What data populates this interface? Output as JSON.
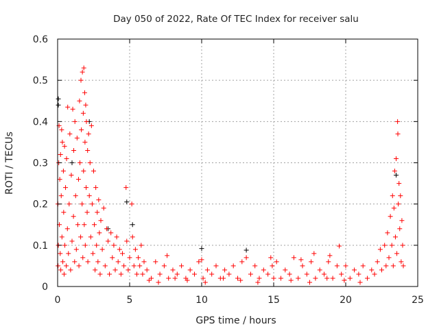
{
  "chart_data": {
    "type": "scatter",
    "title": "Day 050 of 2022, Rate Of TEC Index for receiver salu",
    "xlabel": "GPS time / hours",
    "ylabel": "ROTI / TECUs",
    "xlim": [
      0,
      25
    ],
    "ylim": [
      0,
      0.6
    ],
    "xticks": [
      "0",
      "5",
      "10",
      "15",
      "20",
      "25"
    ],
    "xtick_values": [
      0,
      5,
      10,
      15,
      20,
      25
    ],
    "yticks": [
      "0",
      "0.1",
      "0.2",
      "0.3",
      "0.4",
      "0.5",
      "0.6"
    ],
    "ytick_values": [
      0,
      0.1,
      0.2,
      0.3,
      0.4,
      0.5,
      0.6
    ],
    "grid": true,
    "marker": "plus",
    "series": [
      {
        "name": "secondary",
        "color": "#000000",
        "points": [
          [
            0.05,
            0.455
          ],
          [
            0.05,
            0.44
          ],
          [
            1.0,
            0.3
          ],
          [
            2.2,
            0.4
          ],
          [
            3.5,
            0.14
          ],
          [
            4.8,
            0.205
          ],
          [
            5.2,
            0.15
          ],
          [
            10.0,
            0.092
          ],
          [
            13.1,
            0.088
          ],
          [
            23.5,
            0.27
          ]
        ]
      },
      {
        "name": "primary",
        "color": "#ff0000",
        "points": [
          [
            0.02,
            0.2
          ],
          [
            0.03,
            0.05
          ],
          [
            0.05,
            0.1
          ],
          [
            0.08,
            0.3
          ],
          [
            0.1,
            0.39
          ],
          [
            0.12,
            0.15
          ],
          [
            0.15,
            0.26
          ],
          [
            0.18,
            0.08
          ],
          [
            0.2,
            0.32
          ],
          [
            0.22,
            0.04
          ],
          [
            0.25,
            0.22
          ],
          [
            0.28,
            0.38
          ],
          [
            0.3,
            0.12
          ],
          [
            0.33,
            0.35
          ],
          [
            0.36,
            0.06
          ],
          [
            0.4,
            0.28
          ],
          [
            0.42,
            0.18
          ],
          [
            0.45,
            0.03
          ],
          [
            0.48,
            0.34
          ],
          [
            0.5,
            0.1
          ],
          [
            0.55,
            0.24
          ],
          [
            0.6,
            0.05
          ],
          [
            0.62,
            0.31
          ],
          [
            0.68,
            0.14
          ],
          [
            0.7,
            0.435
          ],
          [
            0.75,
            0.08
          ],
          [
            0.8,
            0.2
          ],
          [
            0.85,
            0.37
          ],
          [
            0.9,
            0.04
          ],
          [
            0.95,
            0.27
          ],
          [
            1.0,
            0.11
          ],
          [
            1.05,
            0.43
          ],
          [
            1.1,
            0.17
          ],
          [
            1.12,
            0.33
          ],
          [
            1.18,
            0.06
          ],
          [
            1.2,
            0.4
          ],
          [
            1.25,
            0.22
          ],
          [
            1.3,
            0.09
          ],
          [
            1.35,
            0.36
          ],
          [
            1.4,
            0.15
          ],
          [
            1.45,
            0.26
          ],
          [
            1.48,
            0.05
          ],
          [
            1.52,
            0.45
          ],
          [
            1.55,
            0.3
          ],
          [
            1.6,
            0.12
          ],
          [
            1.62,
            0.5
          ],
          [
            1.65,
            0.38
          ],
          [
            1.7,
            0.2
          ],
          [
            1.72,
            0.52
          ],
          [
            1.75,
            0.07
          ],
          [
            1.78,
            0.42
          ],
          [
            1.8,
            0.28
          ],
          [
            1.82,
            0.53
          ],
          [
            1.85,
            0.15
          ],
          [
            1.88,
            0.47
          ],
          [
            1.9,
            0.35
          ],
          [
            1.92,
            0.1
          ],
          [
            1.95,
            0.44
          ],
          [
            1.98,
            0.24
          ],
          [
            2.0,
            0.4
          ],
          [
            2.05,
            0.18
          ],
          [
            2.08,
            0.33
          ],
          [
            2.1,
            0.06
          ],
          [
            2.15,
            0.37
          ],
          [
            2.2,
            0.22
          ],
          [
            2.25,
            0.3
          ],
          [
            2.3,
            0.12
          ],
          [
            2.35,
            0.39
          ],
          [
            2.4,
            0.2
          ],
          [
            2.45,
            0.08
          ],
          [
            2.5,
            0.28
          ],
          [
            2.55,
            0.15
          ],
          [
            2.6,
            0.04
          ],
          [
            2.65,
            0.24
          ],
          [
            2.7,
            0.1
          ],
          [
            2.75,
            0.18
          ],
          [
            2.8,
            0.06
          ],
          [
            2.85,
            0.21
          ],
          [
            2.9,
            0.13
          ],
          [
            2.95,
            0.03
          ],
          [
            3.0,
            0.16
          ],
          [
            3.1,
            0.09
          ],
          [
            3.2,
            0.19
          ],
          [
            3.3,
            0.05
          ],
          [
            3.4,
            0.14
          ],
          [
            3.5,
            0.11
          ],
          [
            3.6,
            0.03
          ],
          [
            3.7,
            0.13
          ],
          [
            3.8,
            0.07
          ],
          [
            3.9,
            0.1
          ],
          [
            4.0,
            0.04
          ],
          [
            4.1,
            0.12
          ],
          [
            4.2,
            0.06
          ],
          [
            4.3,
            0.09
          ],
          [
            4.4,
            0.03
          ],
          [
            4.5,
            0.08
          ],
          [
            4.6,
            0.05
          ],
          [
            4.75,
            0.24
          ],
          [
            4.8,
            0.11
          ],
          [
            4.9,
            0.04
          ],
          [
            5.0,
            0.07
          ],
          [
            5.15,
            0.2
          ],
          [
            5.2,
            0.12
          ],
          [
            5.3,
            0.05
          ],
          [
            5.4,
            0.09
          ],
          [
            5.5,
            0.03
          ],
          [
            5.6,
            0.07
          ],
          [
            5.7,
            0.05
          ],
          [
            5.8,
            0.1
          ],
          [
            5.9,
            0.03
          ],
          [
            6.0,
            0.06
          ],
          [
            6.2,
            0.04
          ],
          [
            6.5,
            0.02
          ],
          [
            6.8,
            0.06
          ],
          [
            7.1,
            0.03
          ],
          [
            7.4,
            0.05
          ],
          [
            7.7,
            0.02
          ],
          [
            8.0,
            0.04
          ],
          [
            8.3,
            0.03
          ],
          [
            8.6,
            0.05
          ],
          [
            8.9,
            0.02
          ],
          [
            9.2,
            0.04
          ],
          [
            9.5,
            0.03
          ],
          [
            9.8,
            0.06
          ],
          [
            10.1,
            0.02
          ],
          [
            10.4,
            0.04
          ],
          [
            10.7,
            0.03
          ],
          [
            11.0,
            0.05
          ],
          [
            11.3,
            0.02
          ],
          [
            11.6,
            0.04
          ],
          [
            11.9,
            0.03
          ],
          [
            12.2,
            0.05
          ],
          [
            12.5,
            0.02
          ],
          [
            12.8,
            0.06
          ],
          [
            13.1,
            0.07
          ],
          [
            13.4,
            0.03
          ],
          [
            13.7,
            0.05
          ],
          [
            14.0,
            0.02
          ],
          [
            14.3,
            0.04
          ],
          [
            14.6,
            0.03
          ],
          [
            14.9,
            0.05
          ],
          [
            15.2,
            0.06
          ],
          [
            15.5,
            0.02
          ],
          [
            15.8,
            0.04
          ],
          [
            16.1,
            0.03
          ],
          [
            16.4,
            0.07
          ],
          [
            16.7,
            0.02
          ],
          [
            17.0,
            0.05
          ],
          [
            17.3,
            0.03
          ],
          [
            17.6,
            0.06
          ],
          [
            17.9,
            0.02
          ],
          [
            18.2,
            0.04
          ],
          [
            18.5,
            0.03
          ],
          [
            18.8,
            0.06
          ],
          [
            19.1,
            0.02
          ],
          [
            19.4,
            0.05
          ],
          [
            19.55,
            0.098
          ],
          [
            19.7,
            0.03
          ],
          [
            20.0,
            0.05
          ],
          [
            20.3,
            0.02
          ],
          [
            20.6,
            0.04
          ],
          [
            20.9,
            0.03
          ],
          [
            21.2,
            0.05
          ],
          [
            21.5,
            0.02
          ],
          [
            21.8,
            0.04
          ],
          [
            6.35,
            0.015
          ],
          [
            7.0,
            0.01
          ],
          [
            8.15,
            0.02
          ],
          [
            9.0,
            0.015
          ],
          [
            10.25,
            0.01
          ],
          [
            11.5,
            0.02
          ],
          [
            12.7,
            0.015
          ],
          [
            13.9,
            0.01
          ],
          [
            15.0,
            0.02
          ],
          [
            16.2,
            0.015
          ],
          [
            17.5,
            0.01
          ],
          [
            18.7,
            0.02
          ],
          [
            19.9,
            0.015
          ],
          [
            21.0,
            0.01
          ],
          [
            7.6,
            0.075
          ],
          [
            10.0,
            0.065
          ],
          [
            14.8,
            0.07
          ],
          [
            17.8,
            0.08
          ],
          [
            18.9,
            0.075
          ],
          [
            16.9,
            0.065
          ],
          [
            22.0,
            0.03
          ],
          [
            22.2,
            0.06
          ],
          [
            22.4,
            0.09
          ],
          [
            22.5,
            0.04
          ],
          [
            22.7,
            0.1
          ],
          [
            22.8,
            0.05
          ],
          [
            22.9,
            0.13
          ],
          [
            23.0,
            0.07
          ],
          [
            23.1,
            0.17
          ],
          [
            23.2,
            0.1
          ],
          [
            23.25,
            0.22
          ],
          [
            23.3,
            0.05
          ],
          [
            23.35,
            0.19
          ],
          [
            23.4,
            0.28
          ],
          [
            23.45,
            0.12
          ],
          [
            23.5,
            0.31
          ],
          [
            23.55,
            0.08
          ],
          [
            23.6,
            0.4
          ],
          [
            23.62,
            0.37
          ],
          [
            23.65,
            0.2
          ],
          [
            23.7,
            0.25
          ],
          [
            23.75,
            0.14
          ],
          [
            23.8,
            0.22
          ],
          [
            23.85,
            0.06
          ],
          [
            23.9,
            0.16
          ],
          [
            23.95,
            0.1
          ],
          [
            24.0,
            0.05
          ]
        ]
      }
    ]
  }
}
